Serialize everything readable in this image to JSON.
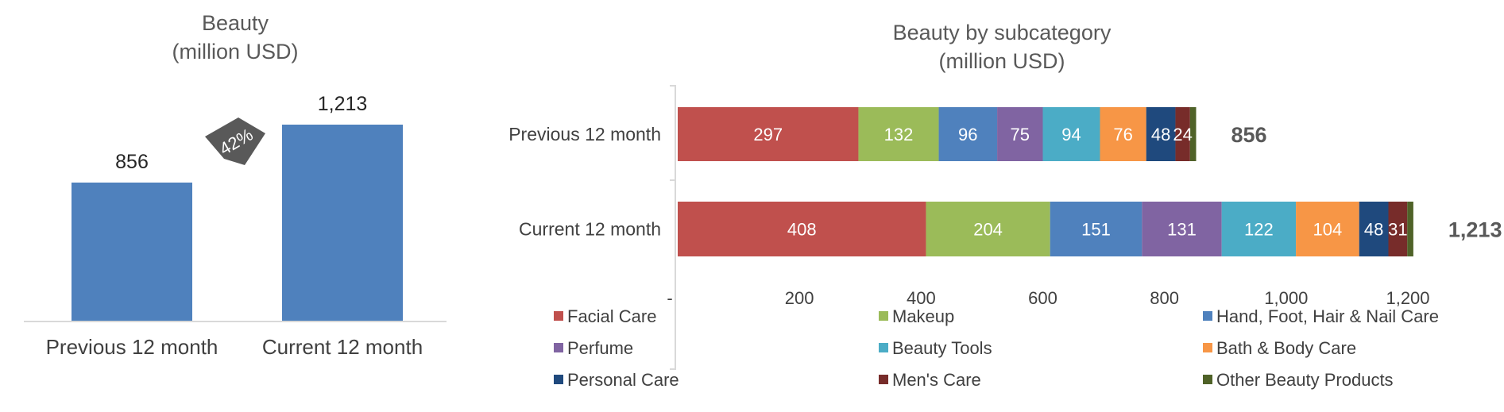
{
  "chart_data": [
    {
      "type": "bar",
      "title": "Beauty",
      "subtitle": "(million USD)",
      "categories": [
        "Previous 12 month",
        "Current 12 month"
      ],
      "values": [
        856,
        1213
      ],
      "value_labels": [
        "856",
        "1,213"
      ],
      "growth_label": "42%",
      "colors": {
        "bar": "#4f81bd",
        "badge": "#595959"
      }
    },
    {
      "type": "bar",
      "orientation": "horizontal",
      "stacked": true,
      "title": "Beauty by subcategory",
      "subtitle": "(million USD)",
      "categories": [
        "Previous 12 month",
        "Current 12 month"
      ],
      "totals": [
        "856",
        "1,213"
      ],
      "xlim": [
        0,
        1200
      ],
      "xticks": [
        "-",
        "200",
        "400",
        "600",
        "800",
        "1,000",
        "1,200"
      ],
      "legend_position": "bottom",
      "series": [
        {
          "name": "Facial Care",
          "values": [
            297,
            408
          ],
          "color": "#c0504d"
        },
        {
          "name": "Makeup",
          "values": [
            132,
            204
          ],
          "color": "#9bbb59"
        },
        {
          "name": "Hand, Foot, Hair & Nail Care",
          "values": [
            96,
            151
          ],
          "color": "#4f81bd"
        },
        {
          "name": "Perfume",
          "values": [
            75,
            131
          ],
          "color": "#8064a2"
        },
        {
          "name": "Beauty Tools",
          "values": [
            94,
            122
          ],
          "color": "#4bacc6"
        },
        {
          "name": "Bath & Body Care",
          "values": [
            76,
            104
          ],
          "color": "#f79646"
        },
        {
          "name": "Personal Care",
          "values": [
            48,
            48
          ],
          "color": "#1f497d"
        },
        {
          "name": "Men's Care",
          "values": [
            24,
            31
          ],
          "color": "#772c2a"
        },
        {
          "name": "Other Beauty Products",
          "values": [
            10,
            10
          ],
          "color": "#4f6228"
        }
      ],
      "segment_labels": [
        [
          "297",
          "132",
          "96",
          "75",
          "94",
          "76",
          "48",
          "24",
          ""
        ],
        [
          "408",
          "204",
          "151",
          "131",
          "122",
          "104",
          "48",
          "31",
          ""
        ]
      ]
    }
  ]
}
